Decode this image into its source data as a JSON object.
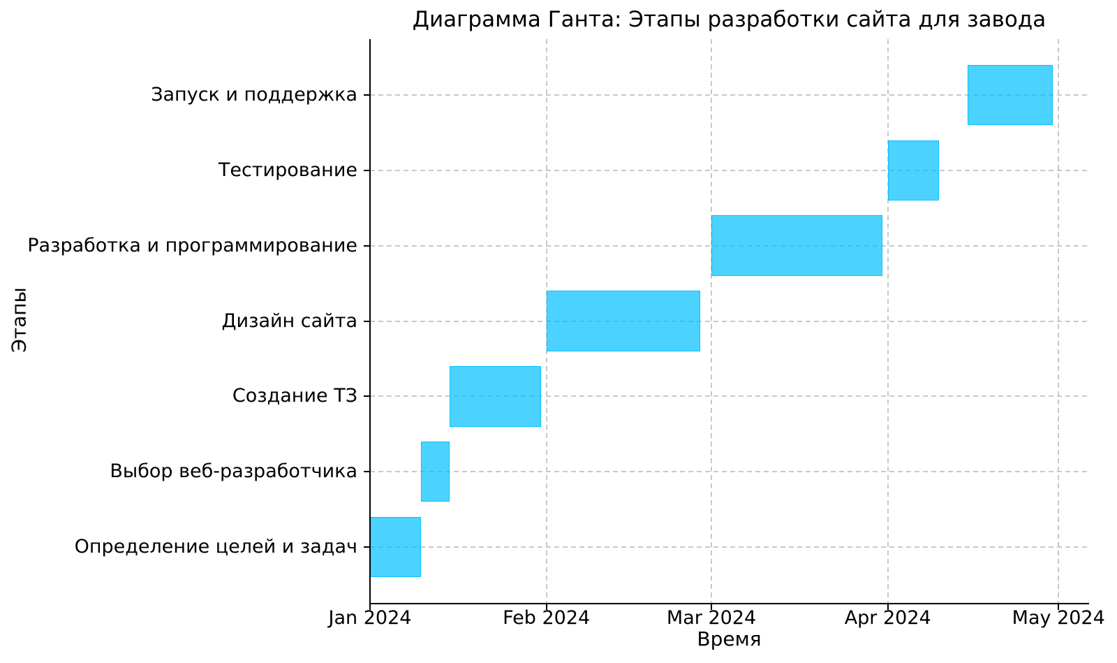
{
  "chart_data": {
    "type": "gantt",
    "title": "Диаграмма Ганта: Этапы разработки сайта для завода",
    "xlabel": "Время",
    "ylabel": "Этапы",
    "grid": true,
    "legend": false,
    "bar_color": "#00BFFF",
    "bar_alpha": 0.7,
    "grid_color": "#c9c9c9",
    "x_domain_days": [
      0,
      126
    ],
    "x_domain_dates": [
      "2024-01-01",
      "2024-05-06"
    ],
    "ylim_units": [
      -0.74,
      6.74
    ],
    "x_ticks": [
      {
        "label": "Jan 2024",
        "day": 0
      },
      {
        "label": "Feb 2024",
        "day": 31
      },
      {
        "label": "Mar 2024",
        "day": 60
      },
      {
        "label": "Apr 2024",
        "day": 91
      },
      {
        "label": "May 2024",
        "day": 121
      }
    ],
    "row_order": "index 0 is bottom row",
    "tasks": [
      {
        "name": "Определение целей и задач",
        "start_date": "2024-01-01",
        "end_date": "2024-01-10",
        "start_day": 0,
        "end_day": 9
      },
      {
        "name": "Выбор веб-разработчика",
        "start_date": "2024-01-10",
        "end_date": "2024-01-15",
        "start_day": 9,
        "end_day": 14
      },
      {
        "name": "Создание ТЗ",
        "start_date": "2024-01-15",
        "end_date": "2024-01-31",
        "start_day": 14,
        "end_day": 30
      },
      {
        "name": "Дизайн сайта",
        "start_date": "2024-02-01",
        "end_date": "2024-02-28",
        "start_day": 31,
        "end_day": 58
      },
      {
        "name": "Разработка и программирование",
        "start_date": "2024-03-01",
        "end_date": "2024-03-31",
        "start_day": 60,
        "end_day": 90
      },
      {
        "name": "Тестирование",
        "start_date": "2024-04-01",
        "end_date": "2024-04-10",
        "start_day": 91,
        "end_day": 100
      },
      {
        "name": "Запуск и поддержка",
        "start_date": "2024-04-15",
        "end_date": "2024-04-30",
        "start_day": 105,
        "end_day": 120
      }
    ]
  }
}
